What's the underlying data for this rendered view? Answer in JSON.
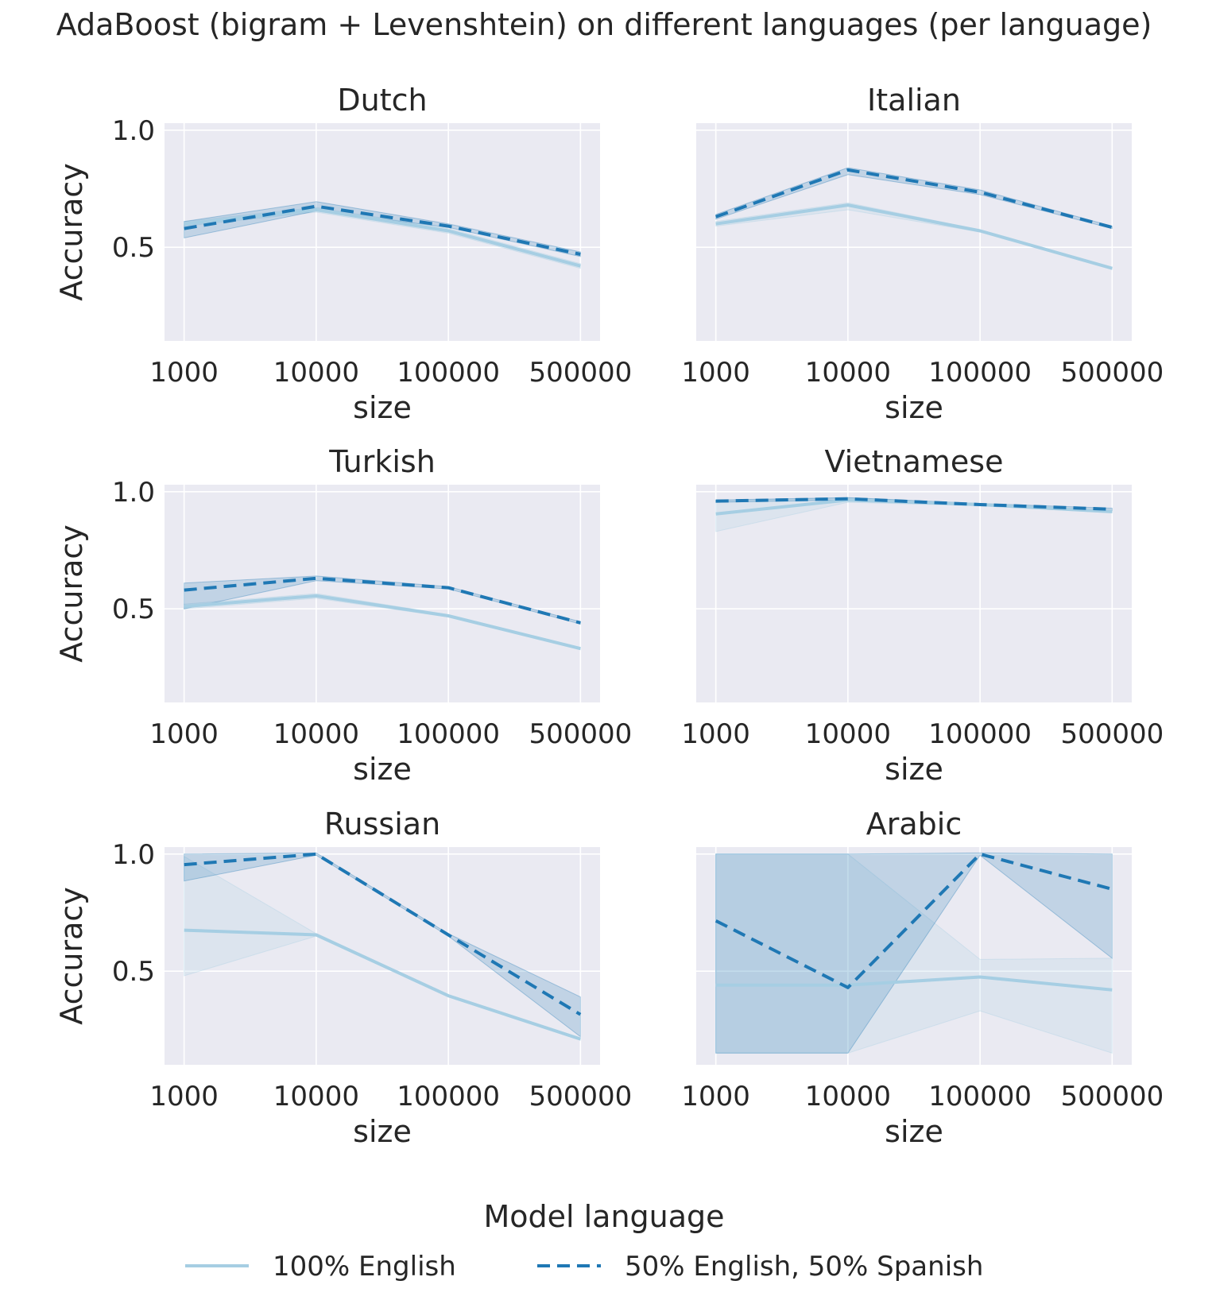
{
  "figure": {
    "suptitle": "AdaBoost (bigram + Levenshtein) on different languages (per language)"
  },
  "legend": {
    "title": "Model language",
    "placement": "bottom-center",
    "entries": [
      {
        "label": "100% English",
        "color": "#a6cee3",
        "style": "solid"
      },
      {
        "label": "50% English, 50% Spanish",
        "color": "#1f78b4",
        "style": "dashed"
      }
    ]
  },
  "colors": {
    "background": "#eaeaf2",
    "grid": "#ffffff",
    "series_light": "#a6cee3",
    "series_dark": "#1f78b4"
  },
  "chart_data": [
    {
      "type": "line",
      "title": "Dutch",
      "xlabel": "size",
      "ylabel": "Accuracy",
      "categories": [
        "1000",
        "10000",
        "100000",
        "500000"
      ],
      "yticks": [
        "0.5",
        "1.0"
      ],
      "ylim": [
        0.1,
        1.03
      ],
      "grid": true,
      "series": [
        {
          "name": "100% English",
          "values": [
            0.6,
            0.66,
            0.57,
            0.42
          ],
          "ci_low": [
            0.59,
            0.65,
            0.56,
            0.41
          ],
          "ci_high": [
            0.61,
            0.67,
            0.58,
            0.43
          ]
        },
        {
          "name": "50% English, 50% Spanish",
          "values": [
            0.58,
            0.675,
            0.59,
            0.47
          ],
          "ci_low": [
            0.54,
            0.655,
            0.585,
            0.46
          ],
          "ci_high": [
            0.61,
            0.695,
            0.6,
            0.48
          ]
        }
      ]
    },
    {
      "type": "line",
      "title": "Italian",
      "xlabel": "size",
      "ylabel": "Accuracy",
      "categories": [
        "1000",
        "10000",
        "100000",
        "500000"
      ],
      "yticks": [
        "0.5",
        "1.0"
      ],
      "ylim": [
        0.1,
        1.03
      ],
      "grid": true,
      "series": [
        {
          "name": "100% English",
          "values": [
            0.6,
            0.68,
            0.57,
            0.41
          ],
          "ci_low": [
            0.59,
            0.66,
            0.565,
            0.405
          ],
          "ci_high": [
            0.61,
            0.69,
            0.575,
            0.415
          ]
        },
        {
          "name": "50% English, 50% Spanish",
          "values": [
            0.63,
            0.83,
            0.735,
            0.585
          ],
          "ci_low": [
            0.62,
            0.81,
            0.725,
            0.58
          ],
          "ci_high": [
            0.64,
            0.84,
            0.745,
            0.59
          ]
        }
      ]
    },
    {
      "type": "line",
      "title": "Turkish",
      "xlabel": "size",
      "ylabel": "Accuracy",
      "categories": [
        "1000",
        "10000",
        "100000",
        "500000"
      ],
      "yticks": [
        "0.5",
        "1.0"
      ],
      "ylim": [
        0.1,
        1.03
      ],
      "grid": true,
      "series": [
        {
          "name": "100% English",
          "values": [
            0.51,
            0.555,
            0.47,
            0.33
          ],
          "ci_low": [
            0.5,
            0.545,
            0.465,
            0.325
          ],
          "ci_high": [
            0.52,
            0.565,
            0.475,
            0.335
          ]
        },
        {
          "name": "50% English, 50% Spanish",
          "values": [
            0.58,
            0.63,
            0.59,
            0.44
          ],
          "ci_low": [
            0.5,
            0.62,
            0.585,
            0.435
          ],
          "ci_high": [
            0.61,
            0.64,
            0.595,
            0.445
          ]
        }
      ]
    },
    {
      "type": "line",
      "title": "Vietnamese",
      "xlabel": "size",
      "ylabel": "Accuracy",
      "categories": [
        "1000",
        "10000",
        "100000",
        "500000"
      ],
      "yticks": [
        "0.5",
        "1.0"
      ],
      "ylim": [
        0.1,
        1.03
      ],
      "grid": true,
      "series": [
        {
          "name": "100% English",
          "values": [
            0.905,
            0.965,
            0.945,
            0.915
          ],
          "ci_low": [
            0.83,
            0.955,
            0.94,
            0.91
          ],
          "ci_high": [
            0.96,
            0.975,
            0.95,
            0.92
          ]
        },
        {
          "name": "50% English, 50% Spanish",
          "values": [
            0.96,
            0.97,
            0.945,
            0.925
          ],
          "ci_low": [
            0.955,
            0.965,
            0.94,
            0.92
          ],
          "ci_high": [
            0.965,
            0.975,
            0.95,
            0.93
          ]
        }
      ]
    },
    {
      "type": "line",
      "title": "Russian",
      "xlabel": "size",
      "ylabel": "Accuracy",
      "categories": [
        "1000",
        "10000",
        "100000",
        "500000"
      ],
      "yticks": [
        "0.5",
        "1.0"
      ],
      "ylim": [
        0.1,
        1.03
      ],
      "grid": true,
      "series": [
        {
          "name": "100% English",
          "values": [
            0.675,
            0.655,
            0.395,
            0.21
          ],
          "ci_low": [
            0.48,
            0.65,
            0.39,
            0.205
          ],
          "ci_high": [
            0.99,
            0.66,
            0.4,
            0.215
          ]
        },
        {
          "name": "50% English, 50% Spanish",
          "values": [
            0.955,
            1.0,
            0.655,
            0.315
          ],
          "ci_low": [
            0.885,
            0.995,
            0.65,
            0.22
          ],
          "ci_high": [
            1.0,
            1.005,
            0.66,
            0.39
          ]
        }
      ]
    },
    {
      "type": "line",
      "title": "Arabic",
      "xlabel": "size",
      "ylabel": "Accuracy",
      "categories": [
        "1000",
        "10000",
        "100000",
        "500000"
      ],
      "yticks": [
        "0.5",
        "1.0"
      ],
      "ylim": [
        0.1,
        1.03
      ],
      "grid": true,
      "series": [
        {
          "name": "100% English",
          "values": [
            0.44,
            0.44,
            0.475,
            0.42
          ],
          "ci_low": [
            0.15,
            0.15,
            0.33,
            0.15
          ],
          "ci_high": [
            1.0,
            1.0,
            0.55,
            0.555
          ]
        },
        {
          "name": "50% English, 50% Spanish",
          "values": [
            0.715,
            0.43,
            1.0,
            0.85
          ],
          "ci_low": [
            0.15,
            0.15,
            0.995,
            0.555
          ],
          "ci_high": [
            1.0,
            1.0,
            1.005,
            1.0
          ]
        }
      ]
    }
  ]
}
